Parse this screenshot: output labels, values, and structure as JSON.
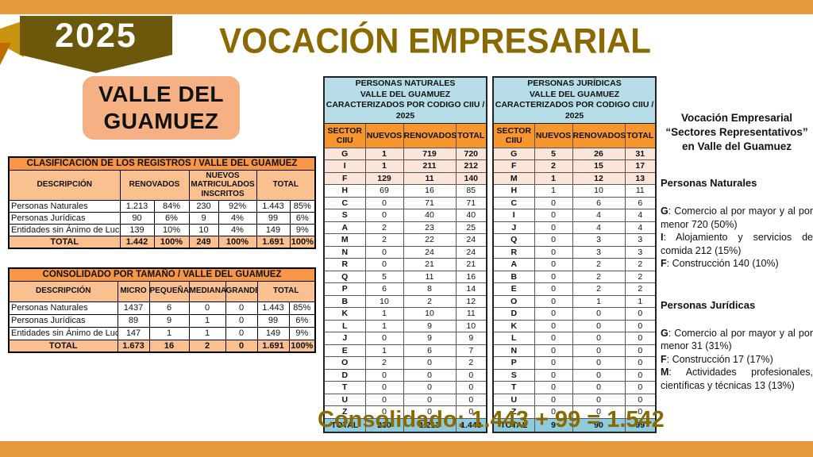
{
  "page": {
    "year": "2025",
    "title": "VOCACIÓN EMPRESARIAL",
    "region_line1": "VALLE DEL",
    "region_line2": "GUAMUEZ",
    "footer": "Consolidado: 1.443 + 99 = 1.542"
  },
  "colors": {
    "accent_orange": "#E89A3E",
    "badge_olive": "#6C580B",
    "ribbon_gold": "#C8930F",
    "title_gold": "#8A6A00",
    "region_peach": "#F5B183",
    "table_title_orange": "#F79646",
    "table_header_peach": "#FAC090",
    "ciiu_title_blue": "#B7DEE8",
    "ciiu_header_orange": "#F7952F",
    "ciiu_total_blue": "#8FC9DC",
    "ciiu_highlight_pink": "#FBE5D8"
  },
  "tables": {
    "clasificacion": {
      "title": "CLASIFICACIÓN DE LOS REGISTROS / VALLE DEL GUAMUEZ",
      "headers": [
        "DESCRIPCIÓN",
        "RENOVADOS",
        "NUEVOS MATRICULADOS INSCRITOS",
        "TOTAL"
      ],
      "rows": [
        [
          "Personas Naturales",
          "1.213",
          "84%",
          "230",
          "92%",
          "1.443",
          "85%"
        ],
        [
          "Personas Jurídicas",
          "90",
          "6%",
          "9",
          "4%",
          "99",
          "6%"
        ],
        [
          "Entidades sin Ánimo de Lucro",
          "139",
          "10%",
          "10",
          "4%",
          "149",
          "9%"
        ]
      ],
      "total": [
        "TOTAL",
        "1.442",
        "100%",
        "249",
        "100%",
        "1.691",
        "100%"
      ]
    },
    "consolidado": {
      "title": "CONSOLIDADO POR TAMAÑO / VALLE DEL GUAMUEZ",
      "headers": [
        "DESCRIPCIÓN",
        "MICRO",
        "PEQUEÑA",
        "MEDIANA",
        "GRANDE",
        "TOTAL"
      ],
      "rows": [
        [
          "Personas Naturales",
          "1437",
          "6",
          "0",
          "0",
          "1.443",
          "85%"
        ],
        [
          "Personas Jurídicas",
          "89",
          "9",
          "1",
          "0",
          "99",
          "6%"
        ],
        [
          "Entidades sin Ánimo de Lucro",
          "147",
          "1",
          "1",
          "0",
          "149",
          "9%"
        ]
      ],
      "total": [
        "TOTAL",
        "1.673",
        "16",
        "2",
        "0",
        "1.691",
        "100%"
      ]
    },
    "ciiu_naturales": {
      "title_lines": [
        "PERSONAS NATURALES",
        "VALLE DEL GUAMUEZ",
        "CARACTERIZADOS POR  CODIGO CIIU / 2025"
      ],
      "headers": [
        "SECTOR CIIU",
        "NUEVOS",
        "RENOVADOS",
        "TOTAL"
      ],
      "rows": [
        [
          "G",
          "1",
          "719",
          "720"
        ],
        [
          "I",
          "1",
          "211",
          "212"
        ],
        [
          "F",
          "129",
          "11",
          "140"
        ],
        [
          "H",
          "69",
          "16",
          "85"
        ],
        [
          "C",
          "0",
          "71",
          "71"
        ],
        [
          "S",
          "0",
          "40",
          "40"
        ],
        [
          "A",
          "2",
          "23",
          "25"
        ],
        [
          "M",
          "2",
          "22",
          "24"
        ],
        [
          "N",
          "0",
          "24",
          "24"
        ],
        [
          "R",
          "0",
          "21",
          "21"
        ],
        [
          "Q",
          "5",
          "11",
          "16"
        ],
        [
          "P",
          "6",
          "8",
          "14"
        ],
        [
          "B",
          "10",
          "2",
          "12"
        ],
        [
          "K",
          "1",
          "10",
          "11"
        ],
        [
          "L",
          "1",
          "9",
          "10"
        ],
        [
          "J",
          "0",
          "9",
          "9"
        ],
        [
          "E",
          "1",
          "6",
          "7"
        ],
        [
          "O",
          "2",
          "0",
          "2"
        ],
        [
          "D",
          "0",
          "0",
          "0"
        ],
        [
          "T",
          "0",
          "0",
          "0"
        ],
        [
          "U",
          "0",
          "0",
          "0"
        ],
        [
          "Z",
          "0",
          "0",
          "0"
        ]
      ],
      "total": [
        "TOTAL",
        "230",
        "1.213",
        "1.443"
      ]
    },
    "ciiu_juridicas": {
      "title_lines": [
        "PERSONAS JURÍDICAS",
        "VALLE DEL GUAMUEZ",
        "CARACTERIZADOS POR  CODIGO CIIU / 2025"
      ],
      "headers": [
        "SECTOR CIIU",
        "NUEVOS",
        "RENOVADOS",
        "TOTAL"
      ],
      "rows": [
        [
          "G",
          "5",
          "26",
          "31"
        ],
        [
          "F",
          "2",
          "15",
          "17"
        ],
        [
          "M",
          "1",
          "12",
          "13"
        ],
        [
          "H",
          "1",
          "10",
          "11"
        ],
        [
          "C",
          "0",
          "6",
          "6"
        ],
        [
          "I",
          "0",
          "4",
          "4"
        ],
        [
          "J",
          "0",
          "4",
          "4"
        ],
        [
          "Q",
          "0",
          "3",
          "3"
        ],
        [
          "R",
          "0",
          "3",
          "3"
        ],
        [
          "A",
          "0",
          "2",
          "2"
        ],
        [
          "B",
          "0",
          "2",
          "2"
        ],
        [
          "E",
          "0",
          "2",
          "2"
        ],
        [
          "O",
          "0",
          "1",
          "1"
        ],
        [
          "D",
          "0",
          "0",
          "0"
        ],
        [
          "K",
          "0",
          "0",
          "0"
        ],
        [
          "L",
          "0",
          "0",
          "0"
        ],
        [
          "N",
          "0",
          "0",
          "0"
        ],
        [
          "P",
          "0",
          "0",
          "0"
        ],
        [
          "S",
          "0",
          "0",
          "0"
        ],
        [
          "T",
          "0",
          "0",
          "0"
        ],
        [
          "U",
          "0",
          "0",
          "0"
        ],
        [
          "Z",
          "0",
          "0",
          "0"
        ]
      ],
      "total": [
        "TOTAL",
        "9",
        "90",
        "99"
      ]
    }
  },
  "sidebar": {
    "title_lines": [
      "Vocación Empresarial",
      "“Sectores Representativos”",
      "en Valle del Guamuez"
    ],
    "sections": [
      {
        "heading": "Personas Naturales",
        "items": [
          {
            "code": "G",
            "text": ": Comercio al por mayor y al por menor 720 (50%)"
          },
          {
            "code": "I",
            "text": ": Alojamiento y servicios de comida 212 (15%)"
          },
          {
            "code": "F",
            "text": ": Construcción 140 (10%)"
          }
        ]
      },
      {
        "heading": "Personas Jurídicas",
        "items": [
          {
            "code": "G",
            "text": ": Comercio al por mayor y al por menor 31 (31%)"
          },
          {
            "code": "F",
            "text": ": Construcción 17 (17%)"
          },
          {
            "code": "M",
            "text": ": Actividades profesionales, científicas y técnicas 13 (13%)"
          }
        ]
      }
    ]
  }
}
